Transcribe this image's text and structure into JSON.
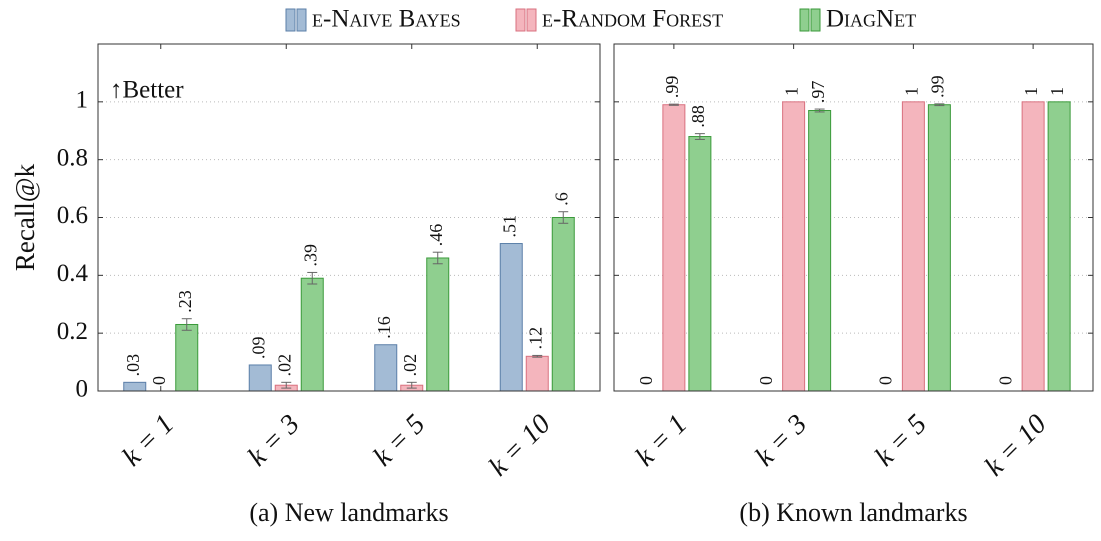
{
  "chart_data": [
    {
      "type": "bar",
      "title": "(a) New landmarks",
      "ylabel": "Recall@k",
      "annotation": "↑Better",
      "categories": [
        "k = 1",
        "k = 3",
        "k = 5",
        "k = 10"
      ],
      "series": [
        {
          "name": "e-Naive Bayes",
          "color": "#a3bbd5",
          "edgecolor": "#5b7fa8",
          "values": [
            0.03,
            0.09,
            0.16,
            0.51
          ],
          "value_labels": [
            ".03",
            ".09",
            ".16",
            ".51"
          ],
          "errors": [
            0,
            0,
            0,
            0
          ]
        },
        {
          "name": "e-Random Forest",
          "color": "#f4b5bd",
          "edgecolor": "#d9707f",
          "values": [
            0,
            0.02,
            0.02,
            0.12
          ],
          "value_labels": [
            "0",
            ".02",
            ".02",
            ".12"
          ],
          "errors": [
            0,
            0.01,
            0.01,
            0.003
          ]
        },
        {
          "name": "DiagNet",
          "color": "#8fcf8f",
          "edgecolor": "#3a9a3a",
          "values": [
            0.23,
            0.39,
            0.46,
            0.6
          ],
          "value_labels": [
            ".23",
            ".39",
            ".46",
            ".6"
          ],
          "errors": [
            0.02,
            0.02,
            0.02,
            0.02
          ]
        }
      ],
      "ylim": [
        0,
        1.2
      ],
      "yticks": [
        0,
        0.2,
        0.4,
        0.6,
        0.8,
        1
      ],
      "grid": true
    },
    {
      "type": "bar",
      "title": "(b) Known landmarks",
      "categories": [
        "k = 1",
        "k = 3",
        "k = 5",
        "k = 10"
      ],
      "series": [
        {
          "color": "#a3bbd5",
          "edgecolor": "#5b7fa8",
          "values": [
            0,
            0,
            0,
            0
          ],
          "value_labels": [
            "0",
            "0",
            "0",
            "0"
          ],
          "errors": [
            0,
            0,
            0,
            0
          ]
        },
        {
          "color": "#f4b5bd",
          "edgecolor": "#d9707f",
          "values": [
            0.99,
            1,
            1,
            1
          ],
          "value_labels": [
            ".99",
            "1",
            "1",
            "1"
          ],
          "errors": [
            0.002,
            0,
            0,
            0
          ]
        },
        {
          "color": "#8fcf8f",
          "edgecolor": "#3a9a3a",
          "values": [
            0.88,
            0.97,
            0.99,
            1
          ],
          "value_labels": [
            ".88",
            ".97",
            ".99",
            "1"
          ],
          "errors": [
            0.01,
            0.005,
            0.003,
            0
          ]
        }
      ],
      "ylim": [
        0,
        1.2
      ],
      "yticks": [
        0,
        0.2,
        0.4,
        0.6,
        0.8,
        1
      ],
      "grid": true
    }
  ]
}
